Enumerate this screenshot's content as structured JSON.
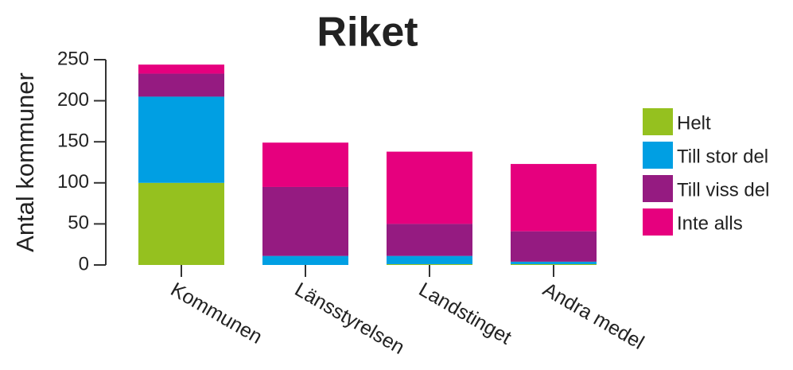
{
  "chart_data": {
    "type": "stacked_bar",
    "title": "Riket",
    "y_label": "Antal kommuner",
    "categories": [
      "Kommunen",
      "Länsstyrelsen",
      "Landstinget",
      "Andra medel"
    ],
    "series": [
      {
        "name": "Helt",
        "color": "#95c11f",
        "values": [
          100,
          0,
          1,
          1
        ]
      },
      {
        "name": "Till stor del",
        "color": "#009fe3",
        "values": [
          105,
          11,
          10,
          3
        ]
      },
      {
        "name": "Till viss del",
        "color": "#951b81",
        "values": [
          28,
          84,
          39,
          37
        ]
      },
      {
        "name": "Inte alls",
        "color": "#e6007e",
        "values": [
          11,
          54,
          88,
          82
        ]
      }
    ],
    "ylim": [
      0,
      250
    ],
    "yticks": [
      0,
      50,
      100,
      150,
      200,
      250
    ]
  }
}
